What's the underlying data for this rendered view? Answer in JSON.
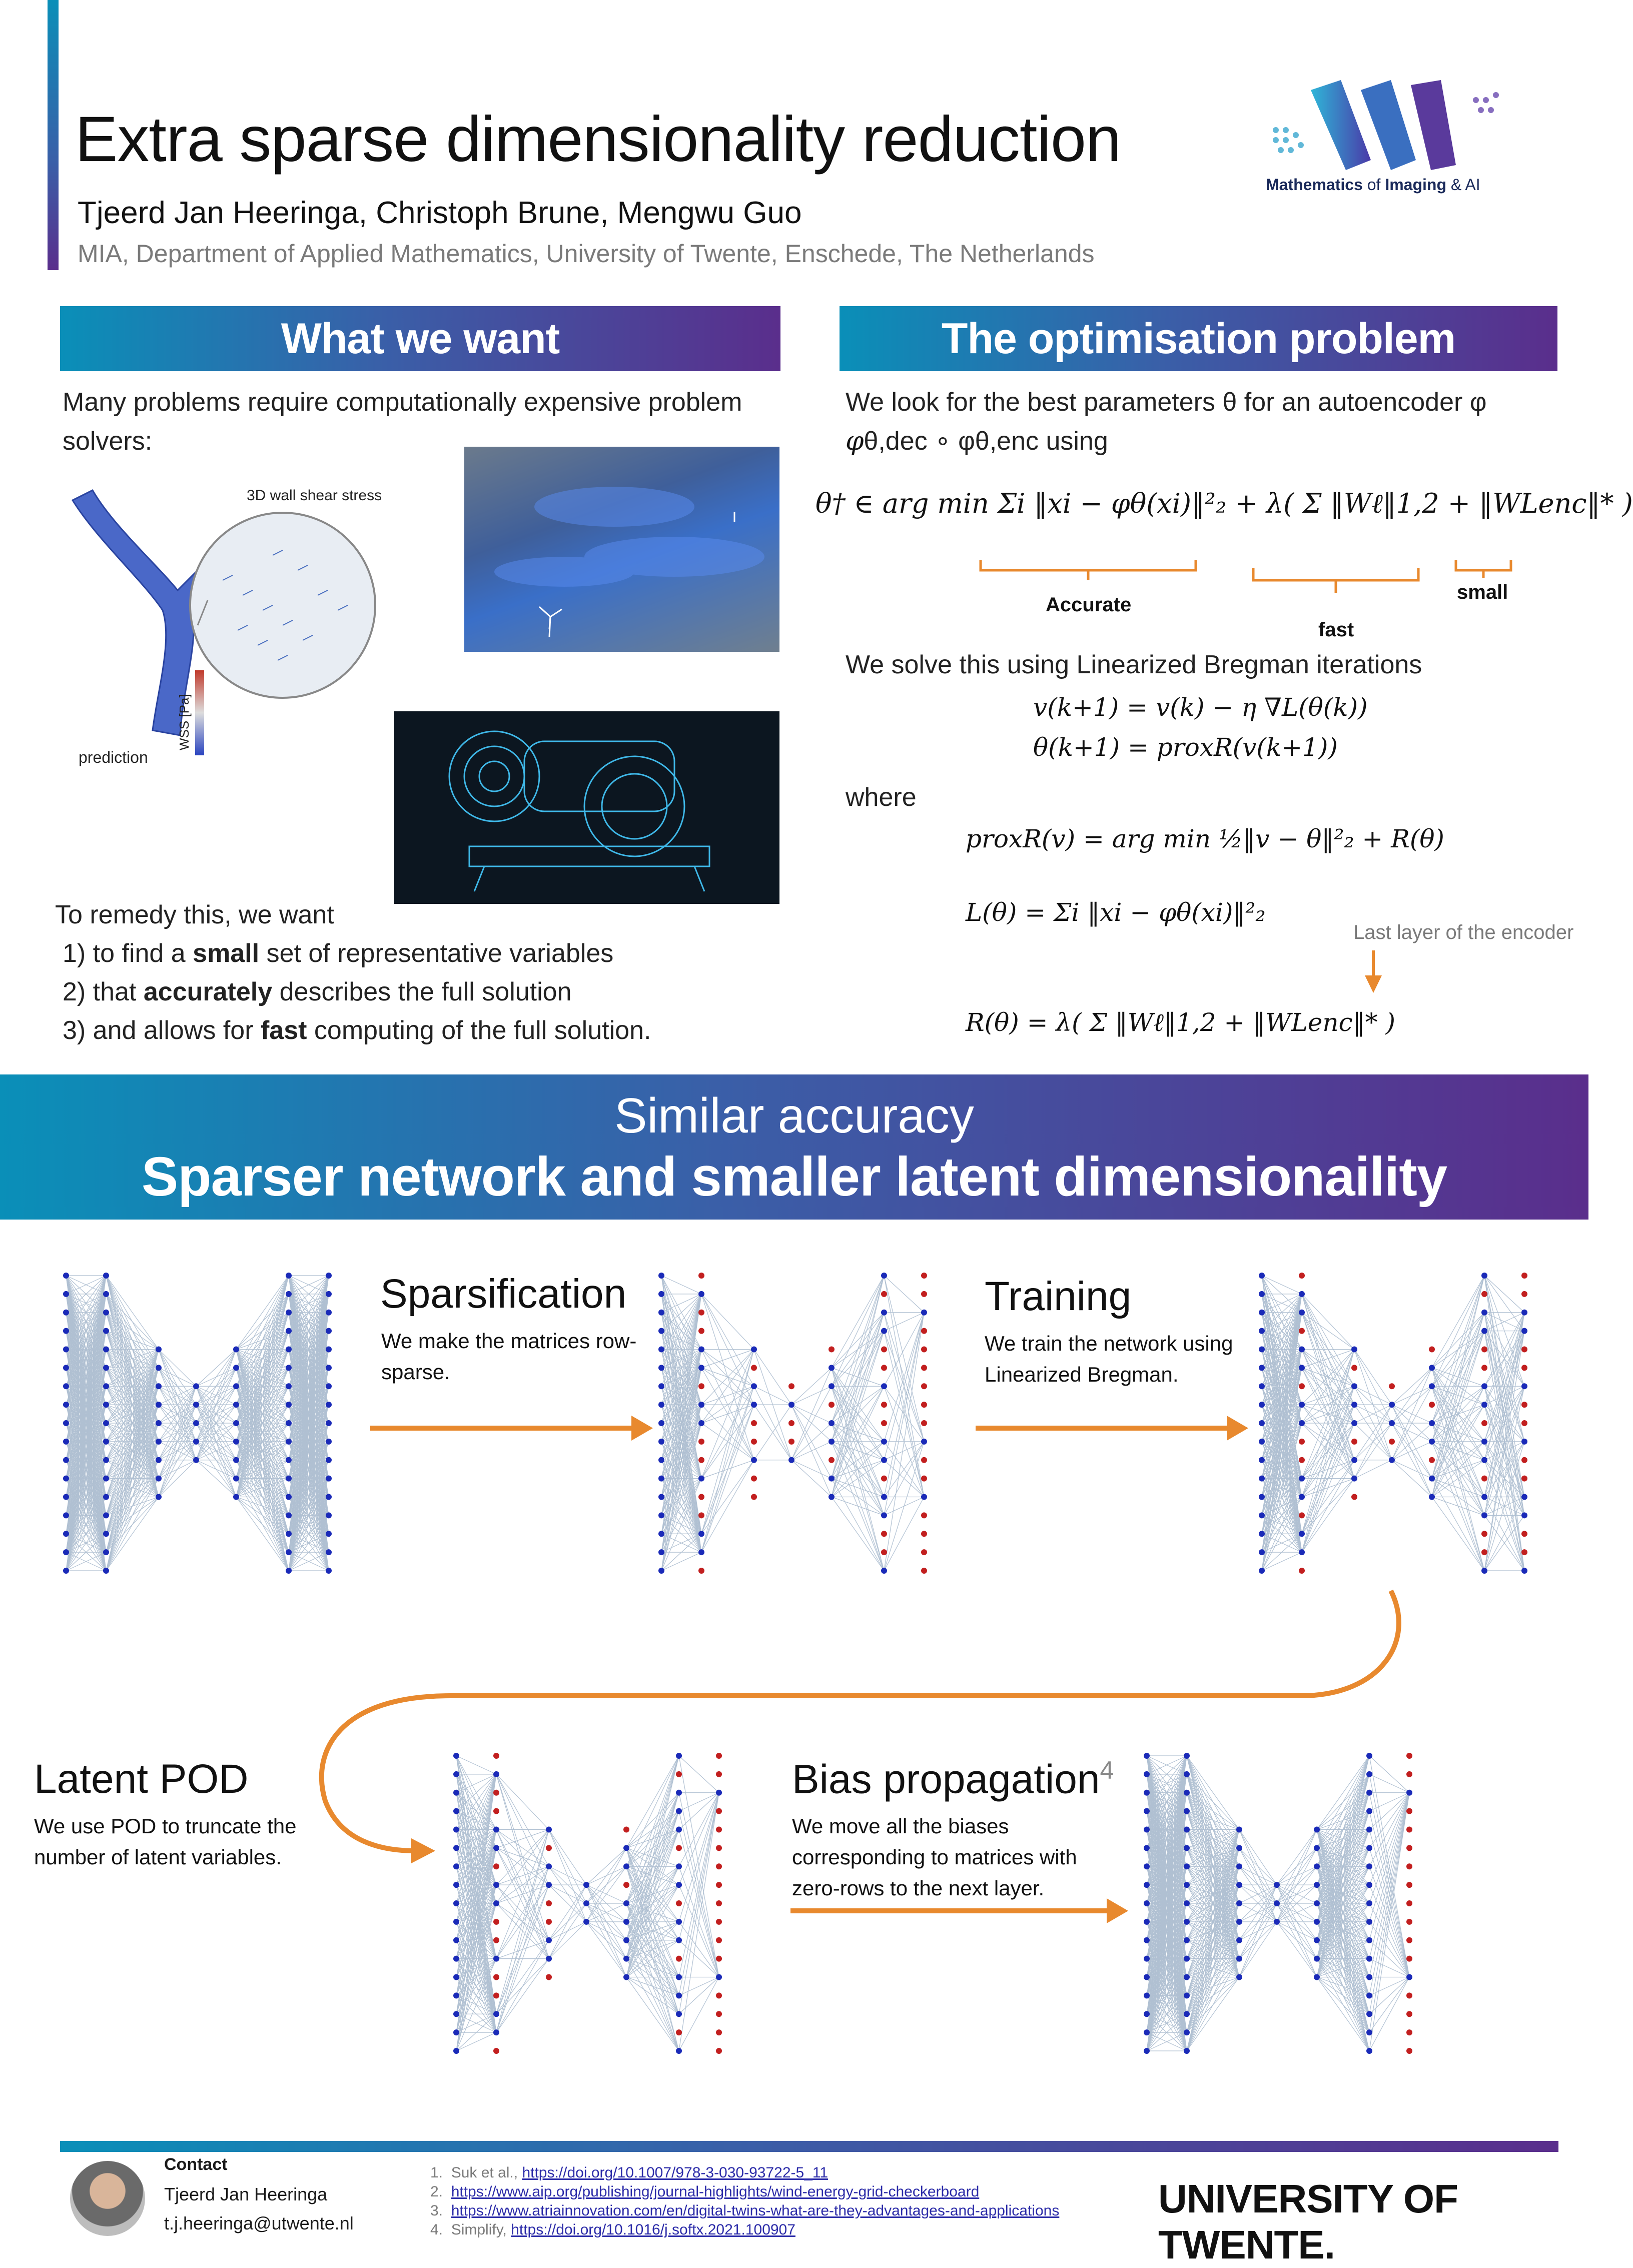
{
  "header": {
    "title": "Extra sparse dimensionality reduction",
    "authors": "Tjeerd Jan Heeringa, Christoph Brune, Mengwu Guo",
    "affiliation": "MIA, Department of Applied Mathematics, University of Twente, Enschede, The Netherlands",
    "logo_text_a": "Mathematics",
    "logo_text_b": " of ",
    "logo_text_c": "Imaging",
    "logo_text_d": " & AI"
  },
  "want": {
    "heading": "What we want",
    "intro": "Many problems require computationally expensive problem solvers:",
    "fig_label_wss": "3D wall shear stress",
    "fig_label_pred": "prediction",
    "fig_label_axis": "WSS [Pa]",
    "remedy": "To remedy this, we want",
    "items": [
      {
        "pre": "1) to find a ",
        "bold": "small",
        "post": " set of representative variables"
      },
      {
        "pre": "2) that ",
        "bold": "accurately",
        "post": " describes the full solution"
      },
      {
        "pre": "3) and allows for ",
        "bold": "fast",
        "post": " computing of the full solution."
      }
    ]
  },
  "opt": {
    "heading": "The optimisation problem",
    "intro_1": "We look for the best parameters θ for an autoencoder φ",
    "intro_2": "θ,dec ∘ φθ,enc using",
    "eq_main": "θ† ∈ arg min Σi ‖xi − φθ(xi)‖²₂ + λ( Σ ‖Wℓ‖1,2 + ‖WLenc‖* )",
    "label_accurate": "Accurate",
    "label_fast": "fast",
    "label_small": "small",
    "solve_text": "We solve this using Linearized Bregman iterations",
    "eq_iter1": "v(k+1) = v(k) − η ∇L(θ(k))",
    "eq_iter2": "θ(k+1) = proxR(v(k+1))",
    "where": "where",
    "eq_prox": "proxR(v) = arg min ½‖v − θ‖²₂ + R(θ)",
    "eq_loss": "L(θ) = Σi ‖xi − φθ(xi)‖²₂",
    "eq_reg": "R(θ) = λ( Σ ‖Wℓ‖1,2 + ‖WLenc‖* )",
    "last_layer_note": "Last layer of the encoder"
  },
  "banner": {
    "line1": "Similar accuracy",
    "line2": "Sparser network and smaller latent dimensionaility"
  },
  "steps": {
    "sparsification": {
      "title": "Sparsification",
      "text": "We make the matrices row-sparse."
    },
    "training": {
      "title": "Training",
      "text": "We train the network using Linearized Bregman."
    },
    "latent_pod": {
      "title": "Latent POD",
      "text": "We use POD to truncate the number of latent variables."
    },
    "bias": {
      "title": "Bias propagation",
      "sup": "4",
      "text": "We move all the biases corresponding to matrices with zero-rows to the next layer."
    }
  },
  "footer": {
    "contact_label": "Contact",
    "name": "Tjeerd Jan Heeringa",
    "email": "t.j.heeringa@utwente.nl",
    "refs": [
      {
        "num": "1.",
        "pre": "Suk et al., ",
        "link": "https://doi.org/10.1007/978-3-030-93722-5_11"
      },
      {
        "num": "2.",
        "pre": "",
        "link": "https://www.aip.org/publishing/journal-highlights/wind-energy-grid-checkerboard"
      },
      {
        "num": "3.",
        "pre": "",
        "link": "https://www.atriainnovation.com/en/digital-twins-what-are-they-advantages-and-applications"
      },
      {
        "num": "4.",
        "pre": "Simplify, ",
        "link": "https://doi.org/10.1016/j.softx.2021.100907"
      }
    ],
    "university": "UNIVERSITY OF TWENTE."
  },
  "colors": {
    "accent_orange": "#e8892e",
    "grad_start": "#0a8fb8",
    "grad_end": "#5a2e8c",
    "node_blue": "#1a2ab8",
    "node_red": "#c21f1f",
    "edge": "#8fa6bf"
  }
}
